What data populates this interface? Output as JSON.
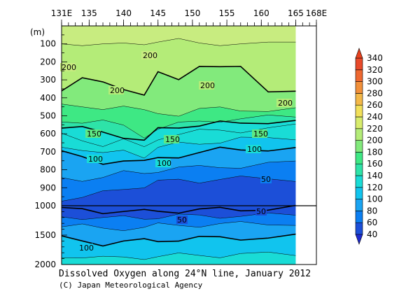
{
  "chart_data": {
    "type": "heatmap",
    "title": "Dissolved Oxygen along 24°N line, January 2012",
    "credit": "(C) Japan Meteorological Agency",
    "y_unit": "(m)",
    "x_ticks": [
      "131E",
      "135",
      "140",
      "145",
      "150",
      "155",
      "160",
      "165",
      "168E"
    ],
    "x_tick_values": [
      131,
      135,
      140,
      145,
      150,
      155,
      160,
      165,
      168
    ],
    "xlim": [
      131,
      168
    ],
    "data_xlim": [
      131,
      165
    ],
    "y_ticks_upper": [
      "100",
      "200",
      "300",
      "400",
      "500",
      "600",
      "700",
      "800",
      "900",
      "1000"
    ],
    "y_ticks_upper_values": [
      100,
      200,
      300,
      400,
      500,
      600,
      700,
      800,
      900,
      1000
    ],
    "y_ticks_lower": [
      "1500",
      "2000"
    ],
    "y_ticks_lower_values": [
      1500,
      2000
    ],
    "ylim": [
      0,
      2000
    ],
    "y_scale_break": 1000,
    "colorbar": {
      "levels": [
        "40",
        "60",
        "80",
        "100",
        "120",
        "140",
        "160",
        "180",
        "200",
        "220",
        "240",
        "260",
        "280",
        "300",
        "320",
        "340"
      ],
      "level_values": [
        40,
        60,
        80,
        100,
        120,
        140,
        160,
        180,
        200,
        220,
        240,
        260,
        280,
        300,
        320,
        340
      ],
      "colors": [
        "#1c4fd8",
        "#0b7ff2",
        "#1aa4f2",
        "#11c4ee",
        "#19dcd6",
        "#2ee3a8",
        "#3ee884",
        "#82ea7c",
        "#b4ec78",
        "#d8ec6c",
        "#f2e05a",
        "#f4b848",
        "#f2903a",
        "#ee6830",
        "#e84a2a"
      ],
      "under_color": "#1e2ad0",
      "over_color": "#e8421e"
    },
    "contour_labels": [
      "200",
      "200",
      "200",
      "200",
      "200",
      "150",
      "150",
      "150",
      "100",
      "100",
      "100",
      "50",
      "50",
      "50",
      "100"
    ],
    "band_boundaries": [
      {
        "level": 220,
        "depth": [
          100,
          110,
          100,
          95,
          105,
          90,
          70,
          95,
          110,
          100,
          90,
          90
        ]
      },
      {
        "level": 200,
        "depth": [
          350,
          300,
          320,
          340,
          380,
          270,
          300,
          210,
          230,
          240,
          360,
          350
        ]
      },
      {
        "level": 180,
        "depth": [
          450,
          450,
          450,
          450,
          480,
          480,
          490,
          470,
          460,
          460,
          470,
          470
        ]
      },
      {
        "level": 160,
        "depth": [
          525,
          530,
          535,
          560,
          610,
          570,
          550,
          530,
          520,
          520,
          510,
          500
        ]
      },
      {
        "level": 150,
        "depth": [
          565,
          575,
          590,
          610,
          640,
          580,
          560,
          545,
          540,
          550,
          530,
          520
        ]
      },
      {
        "level": 140,
        "depth": [
          610,
          630,
          660,
          640,
          680,
          620,
          600,
          590,
          580,
          580,
          570,
          560
        ]
      },
      {
        "level": 120,
        "depth": [
          660,
          690,
          720,
          690,
          720,
          680,
          660,
          650,
          640,
          630,
          630,
          620
        ]
      },
      {
        "level": 100,
        "depth": [
          700,
          740,
          760,
          740,
          760,
          740,
          720,
          700,
          690,
          690,
          680,
          680
        ]
      },
      {
        "level": 80,
        "depth": [
          850,
          850,
          840,
          820,
          820,
          800,
          790,
          790,
          780,
          780,
          770,
          760
        ]
      },
      {
        "level": 60,
        "depth": [
          960,
          960,
          930,
          900,
          890,
          870,
          860,
          860,
          850,
          850,
          850,
          850
        ]
      },
      {
        "level": 50,
        "depth": [
          1070,
          1070,
          1090,
          1090,
          1110,
          1090,
          1080,
          1070,
          1070,
          1060,
          1040,
          1030
        ]
      },
      {
        "level": 60,
        "depth": [
          1180,
          1190,
          1220,
          1210,
          1200,
          1190,
          1180,
          1180,
          1170,
          1170,
          1170,
          1160
        ]
      },
      {
        "level": 80,
        "depth": [
          1330,
          1350,
          1400,
          1380,
          1360,
          1340,
          1330,
          1320,
          1320,
          1310,
          1300,
          1300
        ]
      },
      {
        "level": 100,
        "depth": [
          1560,
          1590,
          1640,
          1620,
          1600,
          1580,
          1570,
          1560,
          1550,
          1540,
          1540,
          1530
        ]
      },
      {
        "level": 120,
        "depth": [
          1850,
          1860,
          1900,
          1890,
          1870,
          1860,
          1850,
          1840,
          1840,
          1830,
          1830,
          1820
        ]
      }
    ],
    "boundary_lons": [
      131,
      134,
      137,
      140,
      143,
      145,
      148,
      151,
      154,
      157,
      161,
      165
    ]
  }
}
